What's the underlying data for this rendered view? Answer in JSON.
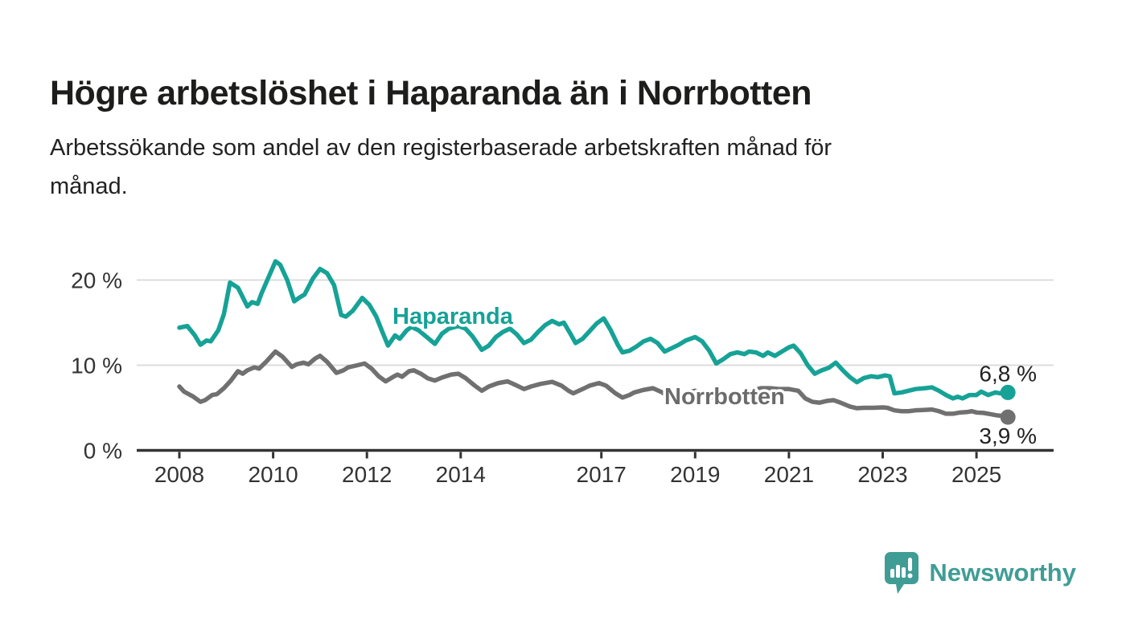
{
  "header": {
    "title": "Högre arbetslöshet i Haparanda än i Norrbotten",
    "subtitle": "Arbetssökande som andel av den registerbaserade arbetskraften månad för månad.",
    "subtitle_lines": [
      "Arbetssökande som andel av den registerbaserade arbetskraften månad för",
      "månad."
    ]
  },
  "branding": {
    "logo_text": "Newsworthy",
    "logo_icon": "newsworthy-speech-bubble-bar-chart-icon"
  },
  "colors": {
    "haparanda": "#16a296",
    "norrbotten": "#707070",
    "norrbotten_label": "#6b6b6b",
    "axis": "#333333",
    "gridline": "#d9d9d9",
    "text": "#222222",
    "logo_teal": "#3f9d95"
  },
  "chart_data": {
    "type": "line",
    "title": "Högre arbetslöshet i Haparanda än i Norrbotten",
    "subtitle": "Arbetssökande som andel av den registerbaserade arbetskraften månad för månad.",
    "xlabel": "",
    "ylabel": "",
    "x_axis": {
      "ticks": [
        2008,
        2010,
        2012,
        2014,
        2017,
        2019,
        2021,
        2023,
        2025
      ],
      "tick_labels": [
        "2008",
        "2010",
        "2012",
        "2014",
        "2017",
        "2019",
        "2021",
        "2023",
        "2025"
      ],
      "range": [
        2007.05,
        2026.65
      ]
    },
    "y_axis": {
      "ticks": [
        {
          "value": 0,
          "label": "0 %"
        },
        {
          "value": 10,
          "label": "10 %"
        },
        {
          "value": 20,
          "label": "20 %"
        }
      ],
      "gridlines": [
        10,
        20
      ],
      "range": [
        0,
        24.5
      ],
      "unit": "%"
    },
    "legend": "inline-labels-on-lines",
    "series": [
      {
        "name": "Norrbotten",
        "color_key": "norrbotten",
        "end_label": "3,9 %",
        "end_value": 3.9,
        "points": [
          [
            2008.0,
            7.5
          ],
          [
            2008.1,
            6.9
          ],
          [
            2008.3,
            6.3
          ],
          [
            2008.45,
            5.7
          ],
          [
            2008.55,
            5.9
          ],
          [
            2008.7,
            6.5
          ],
          [
            2008.8,
            6.6
          ],
          [
            2008.95,
            7.3
          ],
          [
            2009.1,
            8.2
          ],
          [
            2009.25,
            9.3
          ],
          [
            2009.35,
            9.0
          ],
          [
            2009.45,
            9.4
          ],
          [
            2009.6,
            9.75
          ],
          [
            2009.7,
            9.6
          ],
          [
            2009.85,
            10.4
          ],
          [
            2010.05,
            11.6
          ],
          [
            2010.2,
            11.0
          ],
          [
            2010.4,
            9.8
          ],
          [
            2010.5,
            10.1
          ],
          [
            2010.65,
            10.3
          ],
          [
            2010.75,
            10.1
          ],
          [
            2010.9,
            10.8
          ],
          [
            2011.0,
            11.1
          ],
          [
            2011.15,
            10.4
          ],
          [
            2011.35,
            9.1
          ],
          [
            2011.5,
            9.4
          ],
          [
            2011.6,
            9.75
          ],
          [
            2011.8,
            10.0
          ],
          [
            2011.95,
            10.2
          ],
          [
            2012.1,
            9.6
          ],
          [
            2012.25,
            8.7
          ],
          [
            2012.4,
            8.1
          ],
          [
            2012.55,
            8.6
          ],
          [
            2012.65,
            8.9
          ],
          [
            2012.75,
            8.65
          ],
          [
            2012.9,
            9.3
          ],
          [
            2013.0,
            9.4
          ],
          [
            2013.15,
            9.0
          ],
          [
            2013.3,
            8.45
          ],
          [
            2013.45,
            8.2
          ],
          [
            2013.6,
            8.55
          ],
          [
            2013.8,
            8.9
          ],
          [
            2013.95,
            9.0
          ],
          [
            2014.1,
            8.5
          ],
          [
            2014.3,
            7.6
          ],
          [
            2014.45,
            7.0
          ],
          [
            2014.6,
            7.5
          ],
          [
            2014.8,
            7.9
          ],
          [
            2015.0,
            8.1
          ],
          [
            2015.2,
            7.6
          ],
          [
            2015.35,
            7.2
          ],
          [
            2015.5,
            7.5
          ],
          [
            2015.7,
            7.8
          ],
          [
            2015.95,
            8.05
          ],
          [
            2016.15,
            7.6
          ],
          [
            2016.3,
            7.0
          ],
          [
            2016.4,
            6.7
          ],
          [
            2016.6,
            7.2
          ],
          [
            2016.75,
            7.6
          ],
          [
            2016.95,
            7.9
          ],
          [
            2017.1,
            7.6
          ],
          [
            2017.3,
            6.7
          ],
          [
            2017.45,
            6.2
          ],
          [
            2017.6,
            6.5
          ],
          [
            2017.7,
            6.8
          ],
          [
            2017.9,
            7.1
          ],
          [
            2018.1,
            7.3
          ],
          [
            2018.3,
            6.8
          ],
          [
            2018.45,
            6.2
          ],
          [
            2018.6,
            6.5
          ],
          [
            2018.8,
            6.8
          ],
          [
            2019.0,
            7.0
          ],
          [
            2019.2,
            6.6
          ],
          [
            2019.45,
            6.0
          ],
          [
            2019.6,
            6.2
          ],
          [
            2019.8,
            6.4
          ],
          [
            2020.0,
            6.6
          ],
          [
            2020.2,
            7.0
          ],
          [
            2020.4,
            7.3
          ],
          [
            2020.6,
            7.3
          ],
          [
            2020.8,
            7.2
          ],
          [
            2021.0,
            7.2
          ],
          [
            2021.2,
            7.0
          ],
          [
            2021.35,
            6.1
          ],
          [
            2021.5,
            5.7
          ],
          [
            2021.65,
            5.6
          ],
          [
            2021.8,
            5.8
          ],
          [
            2021.95,
            5.9
          ],
          [
            2022.1,
            5.6
          ],
          [
            2022.3,
            5.15
          ],
          [
            2022.45,
            4.95
          ],
          [
            2022.6,
            5.0
          ],
          [
            2022.8,
            5.0
          ],
          [
            2023.0,
            5.05
          ],
          [
            2023.1,
            5.0
          ],
          [
            2023.25,
            4.7
          ],
          [
            2023.4,
            4.6
          ],
          [
            2023.55,
            4.6
          ],
          [
            2023.7,
            4.7
          ],
          [
            2023.9,
            4.75
          ],
          [
            2024.05,
            4.8
          ],
          [
            2024.2,
            4.6
          ],
          [
            2024.35,
            4.3
          ],
          [
            2024.5,
            4.3
          ],
          [
            2024.65,
            4.45
          ],
          [
            2024.8,
            4.5
          ],
          [
            2024.9,
            4.6
          ],
          [
            2025.0,
            4.45
          ],
          [
            2025.15,
            4.4
          ],
          [
            2025.3,
            4.25
          ],
          [
            2025.45,
            4.1
          ],
          [
            2025.55,
            4.05
          ],
          [
            2025.67,
            3.9
          ]
        ]
      },
      {
        "name": "Haparanda",
        "color_key": "haparanda",
        "end_label": "6,8 %",
        "end_value": 6.8,
        "points": [
          [
            2008.0,
            14.4
          ],
          [
            2008.17,
            14.6
          ],
          [
            2008.33,
            13.5
          ],
          [
            2008.45,
            12.4
          ],
          [
            2008.58,
            12.9
          ],
          [
            2008.67,
            12.8
          ],
          [
            2008.83,
            14.1
          ],
          [
            2008.95,
            16.0
          ],
          [
            2009.08,
            19.7
          ],
          [
            2009.25,
            19.1
          ],
          [
            2009.45,
            16.9
          ],
          [
            2009.55,
            17.4
          ],
          [
            2009.67,
            17.2
          ],
          [
            2009.75,
            18.4
          ],
          [
            2009.9,
            20.3
          ],
          [
            2010.05,
            22.2
          ],
          [
            2010.15,
            21.8
          ],
          [
            2010.3,
            20.0
          ],
          [
            2010.45,
            17.5
          ],
          [
            2010.55,
            17.9
          ],
          [
            2010.67,
            18.3
          ],
          [
            2010.85,
            20.2
          ],
          [
            2011.0,
            21.3
          ],
          [
            2011.15,
            20.8
          ],
          [
            2011.3,
            19.4
          ],
          [
            2011.45,
            15.9
          ],
          [
            2011.55,
            15.7
          ],
          [
            2011.7,
            16.4
          ],
          [
            2011.9,
            17.9
          ],
          [
            2012.05,
            17.1
          ],
          [
            2012.2,
            15.7
          ],
          [
            2012.33,
            13.9
          ],
          [
            2012.45,
            12.3
          ],
          [
            2012.6,
            13.5
          ],
          [
            2012.7,
            13.1
          ],
          [
            2012.85,
            14.1
          ],
          [
            2012.95,
            14.5
          ],
          [
            2013.1,
            14.1
          ],
          [
            2013.3,
            13.2
          ],
          [
            2013.45,
            12.5
          ],
          [
            2013.6,
            13.7
          ],
          [
            2013.75,
            14.3
          ],
          [
            2013.95,
            14.6
          ],
          [
            2014.1,
            14.3
          ],
          [
            2014.25,
            13.4
          ],
          [
            2014.45,
            11.8
          ],
          [
            2014.6,
            12.3
          ],
          [
            2014.75,
            13.3
          ],
          [
            2014.9,
            13.9
          ],
          [
            2015.05,
            14.3
          ],
          [
            2015.2,
            13.6
          ],
          [
            2015.35,
            12.6
          ],
          [
            2015.5,
            13.0
          ],
          [
            2015.65,
            13.9
          ],
          [
            2015.8,
            14.7
          ],
          [
            2015.95,
            15.2
          ],
          [
            2016.1,
            14.8
          ],
          [
            2016.2,
            15.0
          ],
          [
            2016.35,
            13.6
          ],
          [
            2016.45,
            12.6
          ],
          [
            2016.6,
            13.1
          ],
          [
            2016.75,
            14.0
          ],
          [
            2016.9,
            14.9
          ],
          [
            2017.05,
            15.5
          ],
          [
            2017.2,
            14.1
          ],
          [
            2017.35,
            12.4
          ],
          [
            2017.45,
            11.5
          ],
          [
            2017.6,
            11.7
          ],
          [
            2017.75,
            12.2
          ],
          [
            2017.9,
            12.8
          ],
          [
            2018.05,
            13.1
          ],
          [
            2018.2,
            12.6
          ],
          [
            2018.35,
            11.6
          ],
          [
            2018.5,
            12.0
          ],
          [
            2018.65,
            12.4
          ],
          [
            2018.8,
            12.9
          ],
          [
            2019.0,
            13.3
          ],
          [
            2019.15,
            12.8
          ],
          [
            2019.3,
            11.7
          ],
          [
            2019.45,
            10.2
          ],
          [
            2019.6,
            10.7
          ],
          [
            2019.75,
            11.3
          ],
          [
            2019.9,
            11.5
          ],
          [
            2020.05,
            11.3
          ],
          [
            2020.15,
            11.6
          ],
          [
            2020.3,
            11.5
          ],
          [
            2020.45,
            11.1
          ],
          [
            2020.55,
            11.5
          ],
          [
            2020.7,
            11.1
          ],
          [
            2020.85,
            11.6
          ],
          [
            2021.0,
            12.1
          ],
          [
            2021.1,
            12.3
          ],
          [
            2021.25,
            11.4
          ],
          [
            2021.4,
            10.0
          ],
          [
            2021.55,
            9.0
          ],
          [
            2021.7,
            9.4
          ],
          [
            2021.85,
            9.7
          ],
          [
            2022.0,
            10.3
          ],
          [
            2022.15,
            9.4
          ],
          [
            2022.3,
            8.6
          ],
          [
            2022.45,
            8.0
          ],
          [
            2022.6,
            8.5
          ],
          [
            2022.75,
            8.7
          ],
          [
            2022.9,
            8.6
          ],
          [
            2023.05,
            8.8
          ],
          [
            2023.15,
            8.7
          ],
          [
            2023.25,
            6.7
          ],
          [
            2023.4,
            6.8
          ],
          [
            2023.55,
            7.0
          ],
          [
            2023.7,
            7.2
          ],
          [
            2023.9,
            7.3
          ],
          [
            2024.05,
            7.4
          ],
          [
            2024.2,
            7.0
          ],
          [
            2024.35,
            6.5
          ],
          [
            2024.5,
            6.1
          ],
          [
            2024.6,
            6.3
          ],
          [
            2024.7,
            6.1
          ],
          [
            2024.85,
            6.5
          ],
          [
            2025.0,
            6.5
          ],
          [
            2025.1,
            6.9
          ],
          [
            2025.25,
            6.5
          ],
          [
            2025.4,
            6.8
          ],
          [
            2025.5,
            6.7
          ],
          [
            2025.67,
            6.8
          ]
        ]
      }
    ]
  }
}
